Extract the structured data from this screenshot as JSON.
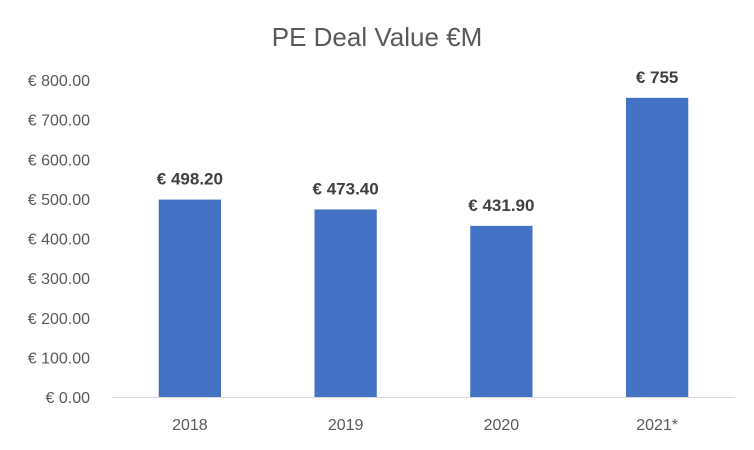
{
  "chart_data": {
    "type": "bar",
    "title": "PE Deal Value €M",
    "categories": [
      "2018",
      "2019",
      "2020",
      "2021*"
    ],
    "values": [
      498.2,
      473.4,
      431.9,
      755
    ],
    "data_labels": [
      "€ 498.20",
      "€ 473.40",
      "€ 431.90",
      "€ 755"
    ],
    "ylim": [
      0,
      800
    ],
    "yticks": [
      0,
      100,
      200,
      300,
      400,
      500,
      600,
      700,
      800
    ],
    "ytick_labels": [
      "€ 0.00",
      "€ 100.00",
      "€ 200.00",
      "€ 300.00",
      "€ 400.00",
      "€ 500.00",
      "€ 600.00",
      "€ 700.00",
      "€ 800.00"
    ],
    "xlabel": "",
    "ylabel": "",
    "grid": false,
    "legend": "none",
    "bar_color": "#4472C4"
  }
}
